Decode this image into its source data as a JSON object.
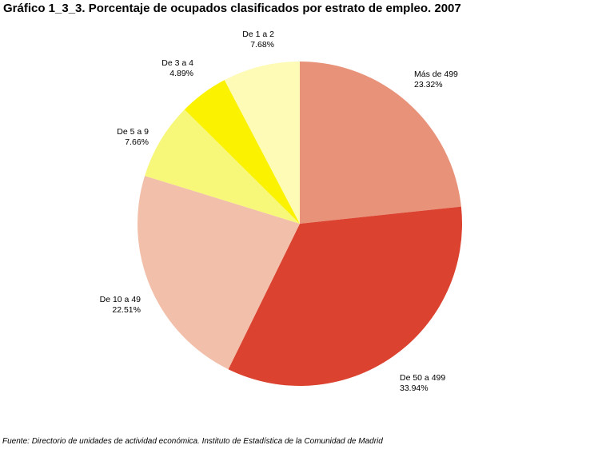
{
  "title": "Gráfico 1_3_3. Porcentaje de ocupados clasificados por estrato de empleo. 2007",
  "footer": "Fuente: Directorio de unidades de actividad económica. Instituto de Estadística de la Comunidad de Madrid",
  "chart_data": {
    "type": "pie",
    "title": "Gráfico 1_3_3. Porcentaje de ocupados clasificados por estrato de empleo. 2007",
    "start": "top",
    "direction": "clockwise",
    "slices": [
      {
        "label": "Más de 499",
        "value": 23.32,
        "display": "23.32%",
        "color": "#e8927a"
      },
      {
        "label": "De 50 a 499",
        "value": 33.94,
        "display": "33.94%",
        "color": "#db4330"
      },
      {
        "label": "De 10 a 49",
        "value": 22.51,
        "display": "22.51%",
        "color": "#f2c0aa"
      },
      {
        "label": "De 5 a 9",
        "value": 7.66,
        "display": "7.66%",
        "color": "#f7f77a"
      },
      {
        "label": "De 3 a 4",
        "value": 4.89,
        "display": "4.89%",
        "color": "#fbf200"
      },
      {
        "label": "De 1 a 2",
        "value": 7.68,
        "display": "7.68%",
        "color": "#fdfbb5"
      }
    ]
  }
}
